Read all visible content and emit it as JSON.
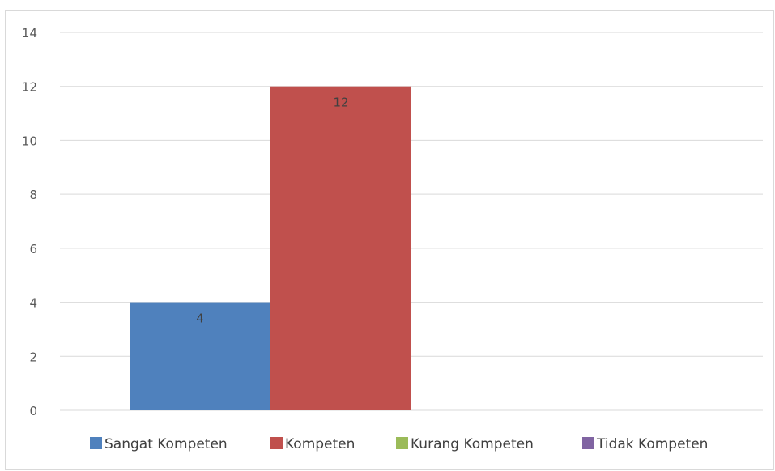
{
  "chart_data": {
    "type": "bar",
    "title": "",
    "xlabel": "",
    "ylabel": "",
    "ylim": [
      0,
      14
    ],
    "yticks": [
      0,
      2,
      4,
      6,
      8,
      10,
      12,
      14
    ],
    "grid": true,
    "legend_position": "bottom",
    "series": [
      {
        "name": "Sangat Kompeten",
        "value": 4,
        "color": "#4f81bd"
      },
      {
        "name": "Kompeten",
        "value": 12,
        "color": "#c0504d"
      },
      {
        "name": "Kurang Kompeten",
        "value": null,
        "color": "#9bbb59"
      },
      {
        "name": "Tidak Kompeten",
        "value": null,
        "color": "#8064a2"
      }
    ]
  }
}
